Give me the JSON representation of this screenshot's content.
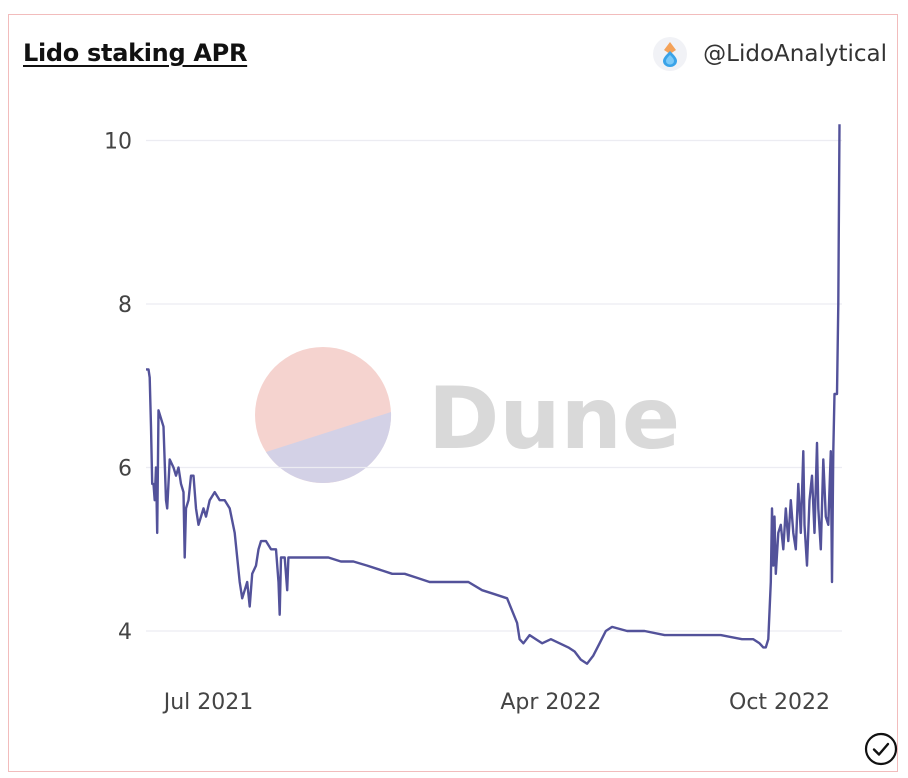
{
  "header": {
    "title": "Lido staking APR",
    "author": "@LidoAnalytical"
  },
  "watermark": {
    "text": "Dune"
  },
  "colors": {
    "line": "#53529a",
    "grid": "#ececf2",
    "tick_text": "#444444",
    "watermark_top": "#f5d3cf",
    "watermark_bottom": "#d3d1e6",
    "watermark_text": "#d9d9d9"
  },
  "icons": {
    "avatar": "lido-drop-icon",
    "verify": "check-circle-icon"
  },
  "chart_data": {
    "type": "line",
    "title": "Lido staking APR",
    "xlabel": "",
    "ylabel": "",
    "ylim": [
      3.45,
      10.3
    ],
    "xlim": [
      "2021-05-12",
      "2022-11-20"
    ],
    "yticks": [
      4,
      6,
      8,
      10
    ],
    "ytick_labels": [
      "4",
      "6",
      "8",
      "10"
    ],
    "xticks": [
      "2021-07-01",
      "2022-04-01",
      "2022-10-01"
    ],
    "xtick_labels": [
      "Jul 2021",
      "Apr 2022",
      "Oct 2022"
    ],
    "grid": true,
    "legend": "none",
    "series": [
      {
        "name": "APR",
        "points": [
          [
            "2021-05-12",
            7.2
          ],
          [
            "2021-05-14",
            7.2
          ],
          [
            "2021-05-15",
            7.1
          ],
          [
            "2021-05-16",
            6.5
          ],
          [
            "2021-05-17",
            5.8
          ],
          [
            "2021-05-18",
            5.8
          ],
          [
            "2021-05-19",
            5.6
          ],
          [
            "2021-05-20",
            6.0
          ],
          [
            "2021-05-21",
            5.2
          ],
          [
            "2021-05-22",
            6.7
          ],
          [
            "2021-05-24",
            6.6
          ],
          [
            "2021-05-26",
            6.5
          ],
          [
            "2021-05-28",
            5.6
          ],
          [
            "2021-05-29",
            5.5
          ],
          [
            "2021-05-31",
            6.1
          ],
          [
            "2021-06-03",
            6.0
          ],
          [
            "2021-06-05",
            5.9
          ],
          [
            "2021-06-07",
            6.0
          ],
          [
            "2021-06-09",
            5.8
          ],
          [
            "2021-06-11",
            5.7
          ],
          [
            "2021-06-12",
            4.9
          ],
          [
            "2021-06-13",
            5.5
          ],
          [
            "2021-06-15",
            5.6
          ],
          [
            "2021-06-17",
            5.9
          ],
          [
            "2021-06-19",
            5.9
          ],
          [
            "2021-06-21",
            5.5
          ],
          [
            "2021-06-23",
            5.3
          ],
          [
            "2021-06-25",
            5.4
          ],
          [
            "2021-06-27",
            5.5
          ],
          [
            "2021-06-29",
            5.4
          ],
          [
            "2021-07-02",
            5.6
          ],
          [
            "2021-07-06",
            5.7
          ],
          [
            "2021-07-10",
            5.6
          ],
          [
            "2021-07-14",
            5.6
          ],
          [
            "2021-07-18",
            5.5
          ],
          [
            "2021-07-22",
            5.2
          ],
          [
            "2021-07-24",
            4.9
          ],
          [
            "2021-07-26",
            4.6
          ],
          [
            "2021-07-28",
            4.4
          ],
          [
            "2021-07-30",
            4.5
          ],
          [
            "2021-08-01",
            4.6
          ],
          [
            "2021-08-03",
            4.3
          ],
          [
            "2021-08-05",
            4.7
          ],
          [
            "2021-08-08",
            4.8
          ],
          [
            "2021-08-10",
            5.0
          ],
          [
            "2021-08-12",
            5.1
          ],
          [
            "2021-08-16",
            5.1
          ],
          [
            "2021-08-20",
            5.0
          ],
          [
            "2021-08-24",
            5.0
          ],
          [
            "2021-08-26",
            4.6
          ],
          [
            "2021-08-27",
            4.2
          ],
          [
            "2021-08-28",
            4.9
          ],
          [
            "2021-08-31",
            4.9
          ],
          [
            "2021-09-02",
            4.5
          ],
          [
            "2021-09-03",
            4.9
          ],
          [
            "2021-09-08",
            4.9
          ],
          [
            "2021-09-15",
            4.9
          ],
          [
            "2021-09-25",
            4.9
          ],
          [
            "2021-10-05",
            4.9
          ],
          [
            "2021-10-15",
            4.85
          ],
          [
            "2021-10-25",
            4.85
          ],
          [
            "2021-11-05",
            4.8
          ],
          [
            "2021-11-15",
            4.75
          ],
          [
            "2021-11-25",
            4.7
          ],
          [
            "2021-12-05",
            4.7
          ],
          [
            "2021-12-15",
            4.65
          ],
          [
            "2021-12-25",
            4.6
          ],
          [
            "2022-01-05",
            4.6
          ],
          [
            "2022-01-15",
            4.6
          ],
          [
            "2022-01-25",
            4.6
          ],
          [
            "2022-02-05",
            4.5
          ],
          [
            "2022-02-15",
            4.45
          ],
          [
            "2022-02-25",
            4.4
          ],
          [
            "2022-03-05",
            4.1
          ],
          [
            "2022-03-07",
            3.9
          ],
          [
            "2022-03-10",
            3.85
          ],
          [
            "2022-03-15",
            3.95
          ],
          [
            "2022-03-20",
            3.9
          ],
          [
            "2022-03-25",
            3.85
          ],
          [
            "2022-04-01",
            3.9
          ],
          [
            "2022-04-08",
            3.85
          ],
          [
            "2022-04-15",
            3.8
          ],
          [
            "2022-04-20",
            3.75
          ],
          [
            "2022-04-25",
            3.65
          ],
          [
            "2022-04-30",
            3.6
          ],
          [
            "2022-05-05",
            3.7
          ],
          [
            "2022-05-10",
            3.85
          ],
          [
            "2022-05-15",
            4.0
          ],
          [
            "2022-05-20",
            4.05
          ],
          [
            "2022-06-01",
            4.0
          ],
          [
            "2022-06-15",
            4.0
          ],
          [
            "2022-07-01",
            3.95
          ],
          [
            "2022-07-15",
            3.95
          ],
          [
            "2022-08-01",
            3.95
          ],
          [
            "2022-08-15",
            3.95
          ],
          [
            "2022-09-01",
            3.9
          ],
          [
            "2022-09-10",
            3.9
          ],
          [
            "2022-09-15",
            3.85
          ],
          [
            "2022-09-18",
            3.8
          ],
          [
            "2022-09-20",
            3.8
          ],
          [
            "2022-09-22",
            3.9
          ],
          [
            "2022-09-24",
            4.6
          ],
          [
            "2022-09-25",
            5.5
          ],
          [
            "2022-09-26",
            4.8
          ],
          [
            "2022-09-27",
            5.4
          ],
          [
            "2022-09-28",
            4.7
          ],
          [
            "2022-09-30",
            5.2
          ],
          [
            "2022-10-02",
            5.3
          ],
          [
            "2022-10-04",
            5.0
          ],
          [
            "2022-10-06",
            5.5
          ],
          [
            "2022-10-08",
            5.1
          ],
          [
            "2022-10-10",
            5.6
          ],
          [
            "2022-10-12",
            5.2
          ],
          [
            "2022-10-14",
            5.0
          ],
          [
            "2022-10-16",
            5.8
          ],
          [
            "2022-10-18",
            5.2
          ],
          [
            "2022-10-20",
            6.2
          ],
          [
            "2022-10-21",
            5.3
          ],
          [
            "2022-10-23",
            4.8
          ],
          [
            "2022-10-25",
            5.6
          ],
          [
            "2022-10-27",
            5.9
          ],
          [
            "2022-10-29",
            5.2
          ],
          [
            "2022-10-31",
            6.3
          ],
          [
            "2022-11-01",
            5.5
          ],
          [
            "2022-11-03",
            5.0
          ],
          [
            "2022-11-05",
            6.1
          ],
          [
            "2022-11-07",
            5.4
          ],
          [
            "2022-11-09",
            5.3
          ],
          [
            "2022-11-11",
            6.2
          ],
          [
            "2022-11-12",
            4.6
          ],
          [
            "2022-11-13",
            6.2
          ],
          [
            "2022-11-14",
            6.9
          ],
          [
            "2022-11-16",
            6.9
          ],
          [
            "2022-11-17",
            8.0
          ],
          [
            "2022-11-18",
            10.2
          ]
        ]
      }
    ]
  }
}
